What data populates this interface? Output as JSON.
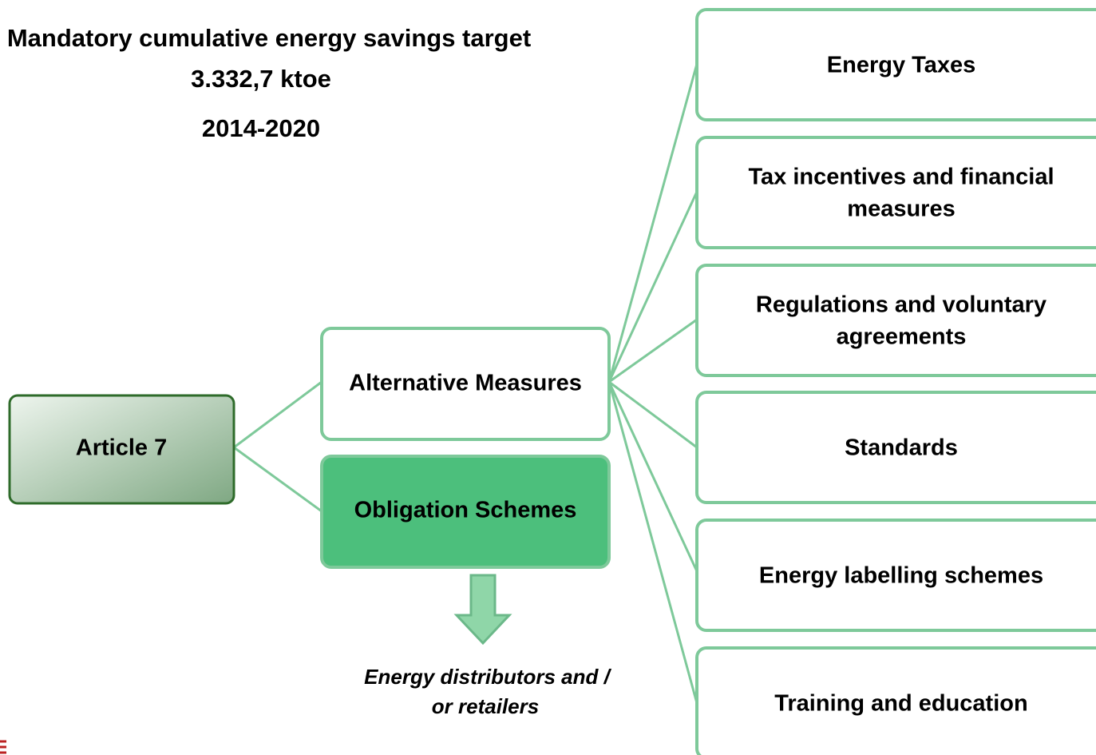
{
  "header": {
    "title": "Mandatory cumulative energy savings target",
    "amount": "3.332,7 ktoe",
    "period": "2014-2020"
  },
  "nodes": {
    "root": {
      "label": "Article 7"
    },
    "alternative": {
      "label": "Alternative Measures"
    },
    "obligation": {
      "label": "Obligation Schemes",
      "note": [
        "Energy distributors and /",
        "or retailers"
      ]
    },
    "measures": [
      [
        "Energy Taxes"
      ],
      [
        "Tax incentives and financial",
        "measures"
      ],
      [
        "Regulations and voluntary",
        "agreements"
      ],
      [
        "Standards"
      ],
      [
        "Energy labelling schemes"
      ],
      [
        "Training and education"
      ]
    ]
  }
}
